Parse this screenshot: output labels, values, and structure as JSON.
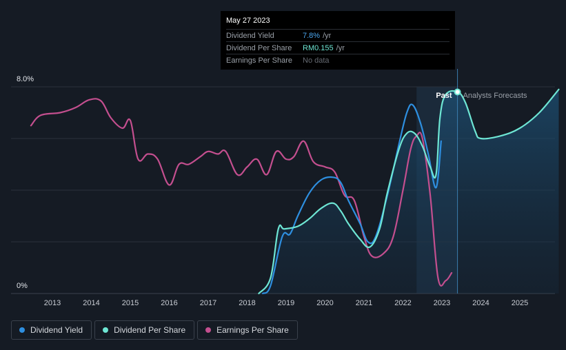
{
  "colors": {
    "background": "#151b24",
    "dividend_yield": "#2e8fe0",
    "dividend_per_share": "#6ee6d4",
    "earnings_per_share": "#c44f8f",
    "grid": "#2a313b"
  },
  "tooltip": {
    "date": "May 27 2023",
    "rows": [
      {
        "label": "Dividend Yield",
        "value": "7.8%",
        "unit": "/yr"
      },
      {
        "label": "Dividend Per Share",
        "value": "RM0.155",
        "unit": "/yr"
      },
      {
        "label": "Earnings Per Share",
        "value": "No data",
        "unit": ""
      }
    ]
  },
  "regions": {
    "past_label": "Past",
    "forecast_label": "Analysts Forecasts"
  },
  "legend": [
    {
      "label": "Dividend Yield",
      "icon": "dot-blue"
    },
    {
      "label": "Dividend Per Share",
      "icon": "dot-cyan"
    },
    {
      "label": "Earnings Per Share",
      "icon": "dot-pink"
    }
  ],
  "chart_data": {
    "type": "line",
    "title": "",
    "xlabel": "",
    "ylabel": "",
    "x_ticks": [
      "2013",
      "2014",
      "2015",
      "2016",
      "2017",
      "2018",
      "2019",
      "2020",
      "2021",
      "2022",
      "2023",
      "2024",
      "2025"
    ],
    "y_tick_labels": [
      "0%",
      "8.0%"
    ],
    "xlim": [
      2012.5,
      2026.0
    ],
    "ylim": [
      0,
      8.0
    ],
    "past_range": [
      2022.35,
      2023.4
    ],
    "series": [
      {
        "name": "Dividend Yield",
        "x": [
          2018.4,
          2018.6,
          2018.9,
          2019.1,
          2019.3,
          2019.6,
          2019.9,
          2020.2,
          2020.4,
          2020.6,
          2020.9,
          2021.1,
          2021.3,
          2021.6,
          2021.9,
          2022.1,
          2022.25,
          2022.45,
          2022.65,
          2022.85,
          2022.98
        ],
        "values": [
          0,
          0.3,
          2.2,
          2.3,
          3.0,
          3.9,
          4.4,
          4.5,
          4.3,
          3.6,
          2.7,
          2.0,
          2.2,
          3.8,
          5.8,
          7.0,
          7.3,
          6.6,
          5.4,
          4.1,
          5.9
        ]
      },
      {
        "name": "Dividend Per Share",
        "x": [
          2018.3,
          2018.6,
          2018.8,
          2018.95,
          2019.3,
          2019.6,
          2019.9,
          2020.2,
          2020.4,
          2020.6,
          2020.9,
          2021.15,
          2021.4,
          2021.6,
          2021.9,
          2022.1,
          2022.3,
          2022.5,
          2022.7,
          2022.85,
          2022.95,
          2023.1,
          2023.4,
          2023.6,
          2023.85,
          2024.0,
          2024.5,
          2025.0,
          2025.5,
          2026.0
        ],
        "values": [
          0,
          0.6,
          2.5,
          2.5,
          2.6,
          2.9,
          3.3,
          3.5,
          3.2,
          2.7,
          2.1,
          1.8,
          2.5,
          3.9,
          5.6,
          6.2,
          6.2,
          5.7,
          4.9,
          4.6,
          6.8,
          7.7,
          7.8,
          7.4,
          6.3,
          6.0,
          6.1,
          6.4,
          7.0,
          7.9
        ]
      },
      {
        "name": "Earnings Per Share",
        "x": [
          2012.45,
          2012.7,
          2013.2,
          2013.6,
          2013.95,
          2014.25,
          2014.5,
          2014.8,
          2015.0,
          2015.2,
          2015.45,
          2015.7,
          2016.0,
          2016.25,
          2016.5,
          2016.8,
          2017.0,
          2017.25,
          2017.45,
          2017.75,
          2018.0,
          2018.25,
          2018.5,
          2018.75,
          2019.0,
          2019.2,
          2019.45,
          2019.7,
          2020.0,
          2020.25,
          2020.5,
          2020.75,
          2021.0,
          2021.2,
          2021.5,
          2021.75,
          2022.0,
          2022.2,
          2022.35,
          2022.5,
          2022.7,
          2022.9,
          2023.1,
          2023.25
        ],
        "values": [
          6.5,
          6.9,
          7.0,
          7.2,
          7.5,
          7.45,
          6.8,
          6.4,
          6.7,
          5.2,
          5.4,
          5.2,
          4.2,
          5.0,
          5.0,
          5.3,
          5.5,
          5.4,
          5.5,
          4.6,
          4.9,
          5.2,
          4.6,
          5.5,
          5.2,
          5.3,
          5.9,
          5.1,
          4.9,
          4.7,
          3.8,
          3.6,
          2.2,
          1.45,
          1.55,
          2.2,
          4.0,
          5.6,
          6.1,
          6.0,
          3.8,
          0.6,
          0.5,
          0.8
        ]
      }
    ],
    "highlight_point": {
      "x": 2023.4,
      "value": 7.8,
      "series": "Dividend Per Share"
    }
  }
}
